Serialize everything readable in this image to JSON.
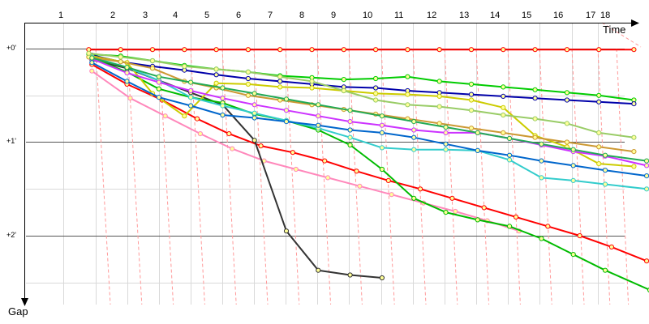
{
  "chart_data": {
    "type": "line",
    "xlabel": "Time",
    "ylabel": "Gap",
    "x_ticks": [
      "1",
      "2",
      "3",
      "4",
      "5",
      "6",
      "7",
      "8",
      "9",
      "10",
      "11",
      "12",
      "13",
      "14",
      "15",
      "16",
      "17",
      "18"
    ],
    "y_ticks": [
      {
        "value": 0,
        "label": "+0'"
      },
      {
        "value": 1,
        "label": "+1'"
      },
      {
        "value": 2,
        "label": "+2'"
      }
    ],
    "grid": true,
    "guide_line_color": "#ff9999",
    "series": [
      {
        "color": "#ff0000",
        "values": [
          [
            0.9,
            0.01
          ],
          [
            1.9,
            0.01
          ],
          [
            2.9,
            0.01
          ],
          [
            3.9,
            0.01
          ],
          [
            4.9,
            0.01
          ],
          [
            5.9,
            0.01
          ],
          [
            6.9,
            0.01
          ],
          [
            7.9,
            0.01
          ],
          [
            8.9,
            0.01
          ],
          [
            9.9,
            0.01
          ],
          [
            10.9,
            0.01
          ],
          [
            11.9,
            0.01
          ],
          [
            12.9,
            0.01
          ],
          [
            13.9,
            0.01
          ],
          [
            14.9,
            0.01
          ],
          [
            15.9,
            0.01
          ],
          [
            16.9,
            0.01
          ],
          [
            18,
            0.01
          ]
        ]
      },
      {
        "color": "#ff0000",
        "values": [
          [
            1,
            0.17
          ],
          [
            2.1,
            0.38
          ],
          [
            3.2,
            0.55
          ],
          [
            4.3,
            0.75
          ],
          [
            5.3,
            0.91
          ],
          [
            6.3,
            1.04
          ],
          [
            7.3,
            1.11
          ],
          [
            8.3,
            1.2
          ],
          [
            9.3,
            1.31
          ],
          [
            10.3,
            1.41
          ],
          [
            11.3,
            1.5
          ],
          [
            12.3,
            1.6
          ],
          [
            13.3,
            1.7
          ],
          [
            14.3,
            1.8
          ],
          [
            15.3,
            1.9
          ],
          [
            16.3,
            2.0
          ],
          [
            17.3,
            2.12
          ],
          [
            18.4,
            2.27
          ]
        ]
      },
      {
        "color": "#ff88bb",
        "values": [
          [
            1,
            0.24
          ],
          [
            2.2,
            0.53
          ],
          [
            3.3,
            0.72
          ],
          [
            4.4,
            0.91
          ],
          [
            5.4,
            1.07
          ],
          [
            6.4,
            1.2
          ],
          [
            7.4,
            1.29
          ],
          [
            8.4,
            1.38
          ],
          [
            9.4,
            1.47
          ],
          [
            10.4,
            1.56
          ],
          [
            11.4,
            1.65
          ],
          [
            12.4,
            1.74
          ],
          [
            13.4,
            1.84
          ],
          [
            14.4,
            1.95
          ]
        ]
      },
      {
        "color": "#333333",
        "values": [
          [
            1,
            0.12
          ],
          [
            2.1,
            0.21
          ],
          [
            3.1,
            0.34
          ],
          [
            4.1,
            0.47
          ],
          [
            5.1,
            0.6
          ],
          [
            6.1,
            0.98
          ],
          [
            7.1,
            1.95
          ],
          [
            8.1,
            2.37
          ],
          [
            9.1,
            2.42
          ],
          [
            10.1,
            2.45
          ]
        ]
      },
      {
        "color": "#00bb00",
        "values": [
          [
            1,
            0.1
          ],
          [
            2.1,
            0.25
          ],
          [
            3.1,
            0.43
          ],
          [
            4.1,
            0.52
          ],
          [
            5.1,
            0.58
          ],
          [
            6.1,
            0.7
          ],
          [
            7.1,
            0.77
          ],
          [
            8.1,
            0.87
          ],
          [
            9.1,
            1.03
          ],
          [
            10.1,
            1.29
          ],
          [
            11.1,
            1.6
          ],
          [
            12.1,
            1.75
          ],
          [
            13.1,
            1.83
          ],
          [
            14.1,
            1.9
          ],
          [
            15.1,
            2.03
          ],
          [
            16.1,
            2.2
          ],
          [
            17.1,
            2.37
          ],
          [
            18.5,
            2.58
          ]
        ]
      },
      {
        "color": "#00cc00",
        "values": [
          [
            0.9,
            0.06
          ],
          [
            1.9,
            0.08
          ],
          [
            2.9,
            0.13
          ],
          [
            3.9,
            0.18
          ],
          [
            4.9,
            0.22
          ],
          [
            5.9,
            0.25
          ],
          [
            6.9,
            0.29
          ],
          [
            7.9,
            0.31
          ],
          [
            8.9,
            0.33
          ],
          [
            9.9,
            0.32
          ],
          [
            10.9,
            0.3
          ],
          [
            11.9,
            0.35
          ],
          [
            12.9,
            0.38
          ],
          [
            13.9,
            0.41
          ],
          [
            14.9,
            0.44
          ],
          [
            15.9,
            0.47
          ],
          [
            16.9,
            0.5
          ],
          [
            18,
            0.55
          ]
        ]
      },
      {
        "color": "#0000aa",
        "values": [
          [
            1,
            0.07
          ],
          [
            1.9,
            0.14
          ],
          [
            2.9,
            0.19
          ],
          [
            3.9,
            0.23
          ],
          [
            4.9,
            0.28
          ],
          [
            5.9,
            0.32
          ],
          [
            6.9,
            0.35
          ],
          [
            7.9,
            0.38
          ],
          [
            8.9,
            0.41
          ],
          [
            9.9,
            0.42
          ],
          [
            10.9,
            0.45
          ],
          [
            11.9,
            0.47
          ],
          [
            12.9,
            0.49
          ],
          [
            13.9,
            0.51
          ],
          [
            14.9,
            0.53
          ],
          [
            15.9,
            0.55
          ],
          [
            16.9,
            0.57
          ],
          [
            18,
            0.59
          ]
        ]
      },
      {
        "color": "#cccc00",
        "values": [
          [
            1,
            0.08
          ],
          [
            2.1,
            0.15
          ],
          [
            2.9,
            0.48
          ],
          [
            3.9,
            0.72
          ],
          [
            4.9,
            0.37
          ],
          [
            5.9,
            0.38
          ],
          [
            6.9,
            0.41
          ],
          [
            7.9,
            0.42
          ],
          [
            8.9,
            0.45
          ],
          [
            9.9,
            0.48
          ],
          [
            10.9,
            0.49
          ],
          [
            11.9,
            0.51
          ],
          [
            12.9,
            0.55
          ],
          [
            13.9,
            0.63
          ],
          [
            14.9,
            0.93
          ],
          [
            15.9,
            1.05
          ],
          [
            16.9,
            1.23
          ],
          [
            18,
            1.26
          ]
        ]
      },
      {
        "color": "#33cccc",
        "values": [
          [
            1,
            0.09
          ],
          [
            2.1,
            0.2
          ],
          [
            3.1,
            0.34
          ],
          [
            4.1,
            0.52
          ],
          [
            5.1,
            0.61
          ],
          [
            6.1,
            0.69
          ],
          [
            7.1,
            0.77
          ],
          [
            8.1,
            0.85
          ],
          [
            9.1,
            0.95
          ],
          [
            10.1,
            1.06
          ],
          [
            11.1,
            1.08
          ],
          [
            12.1,
            1.08
          ],
          [
            13.1,
            1.09
          ],
          [
            14.1,
            1.19
          ],
          [
            15.1,
            1.38
          ],
          [
            16.1,
            1.41
          ],
          [
            17.1,
            1.45
          ],
          [
            18.4,
            1.5
          ]
        ]
      },
      {
        "color": "#cc33ff",
        "values": [
          [
            1,
            0.11
          ],
          [
            2.1,
            0.26
          ],
          [
            3.1,
            0.36
          ],
          [
            4.1,
            0.45
          ],
          [
            5.1,
            0.53
          ],
          [
            6.1,
            0.6
          ],
          [
            7.1,
            0.66
          ],
          [
            8.1,
            0.72
          ],
          [
            9.1,
            0.78
          ],
          [
            10.1,
            0.82
          ],
          [
            11.1,
            0.87
          ],
          [
            12.1,
            0.9
          ],
          [
            13.1,
            0.9
          ],
          [
            14.1,
            0.96
          ],
          [
            15.1,
            1.03
          ],
          [
            16.1,
            1.1
          ],
          [
            17.1,
            1.15
          ],
          [
            18.4,
            1.25
          ]
        ]
      },
      {
        "color": "#cc9933",
        "values": [
          [
            0.9,
            0.09
          ],
          [
            1.9,
            0.14
          ],
          [
            2.9,
            0.21
          ],
          [
            3.9,
            0.35
          ],
          [
            4.9,
            0.42
          ],
          [
            5.9,
            0.5
          ],
          [
            6.9,
            0.55
          ],
          [
            7.9,
            0.6
          ],
          [
            8.9,
            0.65
          ],
          [
            9.9,
            0.7
          ],
          [
            10.9,
            0.75
          ],
          [
            11.9,
            0.8
          ],
          [
            12.9,
            0.85
          ],
          [
            13.9,
            0.9
          ],
          [
            14.9,
            0.95
          ],
          [
            15.9,
            1.0
          ],
          [
            16.9,
            1.05
          ],
          [
            18,
            1.1
          ]
        ]
      },
      {
        "color": "#99cc66",
        "values": [
          [
            0.9,
            0.05
          ],
          [
            1.9,
            0.09
          ],
          [
            2.9,
            0.13
          ],
          [
            3.9,
            0.19
          ],
          [
            4.9,
            0.22
          ],
          [
            5.9,
            0.25
          ],
          [
            6.9,
            0.3
          ],
          [
            7.9,
            0.35
          ],
          [
            8.9,
            0.45
          ],
          [
            9.9,
            0.55
          ],
          [
            10.9,
            0.6
          ],
          [
            11.9,
            0.62
          ],
          [
            12.9,
            0.66
          ],
          [
            13.9,
            0.71
          ],
          [
            14.9,
            0.75
          ],
          [
            15.9,
            0.8
          ],
          [
            16.9,
            0.9
          ],
          [
            18,
            0.95
          ]
        ]
      },
      {
        "color": "#0066cc",
        "values": [
          [
            1,
            0.15
          ],
          [
            2.1,
            0.35
          ],
          [
            3.1,
            0.52
          ],
          [
            4.1,
            0.61
          ],
          [
            5.1,
            0.71
          ],
          [
            6.1,
            0.74
          ],
          [
            7.1,
            0.78
          ],
          [
            8.1,
            0.82
          ],
          [
            9.1,
            0.87
          ],
          [
            10.1,
            0.9
          ],
          [
            11.1,
            0.95
          ],
          [
            12.1,
            1.02
          ],
          [
            13.1,
            1.09
          ],
          [
            14.1,
            1.14
          ],
          [
            15.1,
            1.2
          ],
          [
            16.1,
            1.25
          ],
          [
            17.1,
            1.3
          ],
          [
            18.4,
            1.36
          ]
        ]
      },
      {
        "color": "#22aa55",
        "values": [
          [
            1,
            0.1
          ],
          [
            2.1,
            0.2
          ],
          [
            3.1,
            0.3
          ],
          [
            4.1,
            0.36
          ],
          [
            5.1,
            0.42
          ],
          [
            6.1,
            0.48
          ],
          [
            7.1,
            0.54
          ],
          [
            8.1,
            0.6
          ],
          [
            9.1,
            0.66
          ],
          [
            10.1,
            0.72
          ],
          [
            11.1,
            0.78
          ],
          [
            12.1,
            0.84
          ],
          [
            13.1,
            0.9
          ],
          [
            14.1,
            0.96
          ],
          [
            15.1,
            1.02
          ],
          [
            16.1,
            1.08
          ],
          [
            17.1,
            1.14
          ],
          [
            18.4,
            1.2
          ]
        ]
      }
    ]
  }
}
